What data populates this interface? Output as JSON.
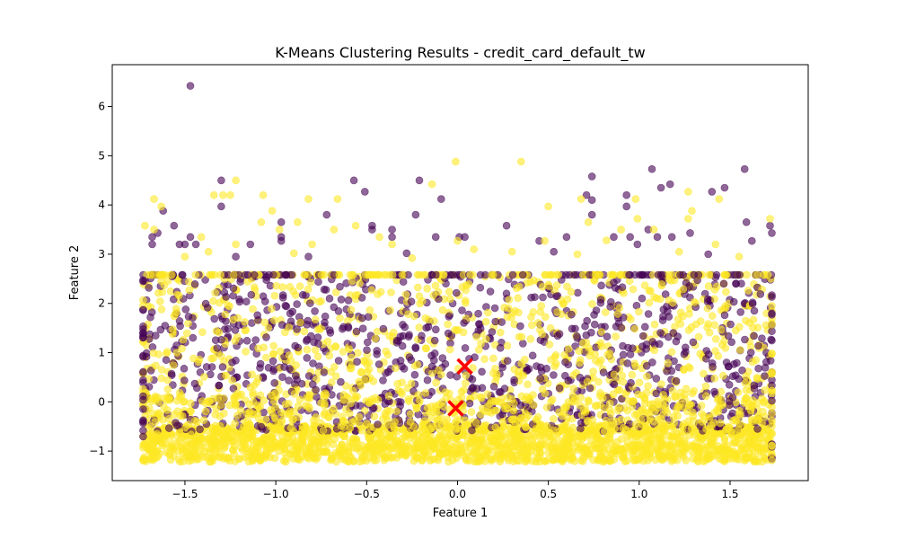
{
  "chart_data": {
    "type": "scatter",
    "title": "K-Means Clustering Results - credit_card_default_tw",
    "xlabel": "Feature 1",
    "ylabel": "Feature 2",
    "xlim": [
      -1.9,
      1.93
    ],
    "ylim": [
      -1.6,
      6.85
    ],
    "xticks": [
      -1.5,
      -1.0,
      -0.5,
      0.0,
      0.5,
      1.0,
      1.5
    ],
    "xtick_labels": [
      "−1.5",
      "−1.0",
      "−0.5",
      "0.0",
      "0.5",
      "1.0",
      "1.5"
    ],
    "yticks": [
      -1,
      0,
      1,
      2,
      3,
      4,
      5,
      6
    ],
    "ytick_labels": [
      "−1",
      "0",
      "1",
      "2",
      "3",
      "4",
      "5",
      "6"
    ],
    "grid": false,
    "point_alpha": 0.6,
    "series": [
      {
        "cluster": 0,
        "color": "#440154",
        "x_range": [
          -1.73,
          1.73
        ],
        "dense_y_range": [
          -1.2,
          2.58
        ],
        "band_y": 2.58,
        "outliers": [
          [
            -1.47,
            6.42
          ],
          [
            -1.3,
            4.5
          ],
          [
            -0.57,
            4.5
          ],
          [
            -0.51,
            4.27
          ],
          [
            -0.21,
            4.5
          ],
          [
            -0.09,
            4.12
          ],
          [
            0.74,
            4.58
          ],
          [
            1.07,
            4.73
          ],
          [
            1.58,
            4.73
          ],
          [
            1.12,
            4.35
          ],
          [
            1.17,
            4.42
          ],
          [
            1.47,
            4.35
          ],
          [
            1.4,
            4.27
          ],
          [
            0.71,
            4.2
          ],
          [
            0.74,
            4.1
          ],
          [
            0.93,
            4.2
          ],
          [
            0.93,
            3.97
          ],
          [
            -1.62,
            3.88
          ],
          [
            -1.56,
            3.58
          ],
          [
            -1.65,
            3.43
          ],
          [
            -1.68,
            3.35
          ],
          [
            -1.68,
            3.2
          ],
          [
            -1.53,
            3.2
          ],
          [
            -1.5,
            3.2
          ],
          [
            -1.47,
            3.35
          ],
          [
            -1.44,
            3.2
          ],
          [
            -1.3,
            3.97
          ],
          [
            -1.14,
            3.2
          ],
          [
            -0.97,
            3.65
          ],
          [
            -0.97,
            3.35
          ],
          [
            -0.97,
            3.27
          ],
          [
            -0.72,
            3.8
          ],
          [
            -0.47,
            3.58
          ],
          [
            -0.47,
            3.5
          ],
          [
            -0.36,
            3.5
          ],
          [
            -0.36,
            3.35
          ],
          [
            -0.23,
            3.8
          ],
          [
            -0.12,
            3.35
          ],
          [
            0.01,
            3.35
          ],
          [
            0.04,
            3.35
          ],
          [
            0.27,
            3.58
          ],
          [
            0.45,
            3.27
          ],
          [
            0.6,
            3.35
          ],
          [
            0.74,
            3.8
          ],
          [
            0.86,
            3.35
          ],
          [
            0.95,
            3.35
          ],
          [
            0.99,
            3.2
          ],
          [
            1.05,
            3.5
          ],
          [
            1.18,
            3.35
          ],
          [
            1.28,
            3.43
          ],
          [
            1.59,
            3.65
          ],
          [
            1.62,
            3.27
          ],
          [
            1.72,
            3.58
          ],
          [
            1.73,
            3.43
          ],
          [
            1.1,
            3.35
          ],
          [
            0.53,
            3.05
          ],
          [
            -0.28,
            3.02
          ],
          [
            -1.22,
            2.95
          ],
          [
            -0.82,
            2.95
          ],
          [
            1.38,
            3.0
          ]
        ]
      },
      {
        "cluster": 1,
        "color": "#fde725",
        "x_range": [
          -1.73,
          1.73
        ],
        "dense_y_range": [
          -1.25,
          2.58
        ],
        "band_y": 2.58,
        "outliers": [
          [
            -0.01,
            4.88
          ],
          [
            0.35,
            4.88
          ],
          [
            -1.22,
            4.5
          ],
          [
            -0.14,
            4.42
          ],
          [
            -1.34,
            4.2
          ],
          [
            -1.29,
            4.2
          ],
          [
            -1.25,
            4.2
          ],
          [
            -1.07,
            4.2
          ],
          [
            -0.82,
            4.12
          ],
          [
            -0.66,
            4.12
          ],
          [
            -1.67,
            4.12
          ],
          [
            -1.63,
            3.97
          ],
          [
            0.5,
            3.97
          ],
          [
            0.68,
            4.12
          ],
          [
            0.98,
            4.12
          ],
          [
            1.27,
            4.27
          ],
          [
            1.29,
            3.88
          ],
          [
            1.44,
            4.12
          ],
          [
            -1.72,
            3.58
          ],
          [
            -1.67,
            3.5
          ],
          [
            -1.41,
            3.35
          ],
          [
            -1.22,
            3.2
          ],
          [
            -1.08,
            3.65
          ],
          [
            -1.02,
            3.88
          ],
          [
            -0.98,
            3.5
          ],
          [
            -0.88,
            3.65
          ],
          [
            -0.8,
            3.2
          ],
          [
            -0.68,
            3.5
          ],
          [
            -0.56,
            3.58
          ],
          [
            -0.43,
            3.35
          ],
          [
            -0.36,
            3.2
          ],
          [
            0.0,
            3.27
          ],
          [
            0.09,
            3.1
          ],
          [
            0.48,
            3.27
          ],
          [
            0.72,
            3.65
          ],
          [
            0.9,
            3.5
          ],
          [
            0.99,
            3.72
          ],
          [
            1.08,
            3.5
          ],
          [
            1.27,
            3.72
          ],
          [
            1.42,
            3.2
          ],
          [
            1.72,
            3.72
          ],
          [
            -1.37,
            3.05
          ],
          [
            -0.25,
            2.92
          ],
          [
            0.3,
            3.05
          ],
          [
            0.66,
            3.0
          ],
          [
            1.22,
            3.05
          ],
          [
            1.55,
            2.95
          ],
          [
            -0.9,
            3.02
          ],
          [
            0.82,
            3.28
          ],
          [
            -1.5,
            2.95
          ]
        ]
      }
    ],
    "centroids": {
      "marker": "x",
      "color": "#ff0000",
      "points": [
        [
          0.04,
          0.72
        ],
        [
          -0.01,
          -0.13
        ]
      ]
    }
  }
}
